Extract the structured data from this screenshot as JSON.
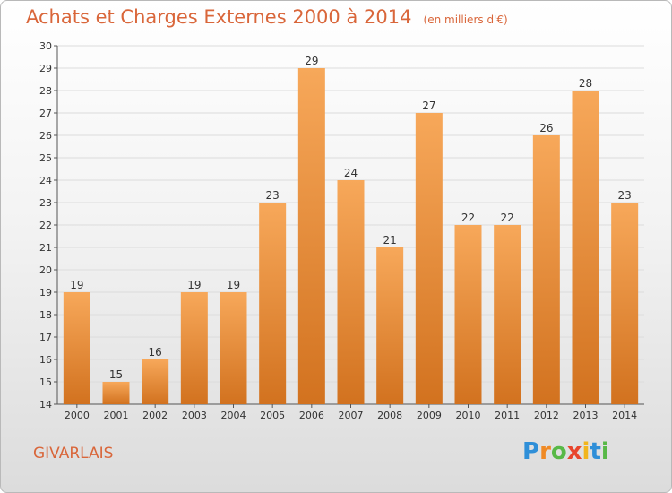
{
  "header": {
    "title": "Achats et Charges Externes 2000 à 2014",
    "unit": "(en milliers d'€)"
  },
  "footer": {
    "commune": "GIVARLAIS",
    "logo": [
      "P",
      "r",
      "o",
      "x",
      "i",
      "t",
      "i"
    ],
    "logo_colors": [
      "#2f8fd8",
      "#f08a24",
      "#58b947",
      "#e8452c",
      "#f2b51c",
      "#2f8fd8",
      "#58b947"
    ]
  },
  "colors": {
    "bar_top": "#f7a85a",
    "bar_bottom": "#d2721f",
    "title": "#d9663a",
    "grid": "#dcdcdc"
  },
  "chart_data": {
    "type": "bar",
    "title": "Achats et Charges Externes 2000 à 2014",
    "subtitle": "(en milliers d'€)",
    "categories": [
      "2000",
      "2001",
      "2002",
      "2003",
      "2004",
      "2005",
      "2006",
      "2007",
      "2008",
      "2009",
      "2010",
      "2011",
      "2012",
      "2013",
      "2014"
    ],
    "values": [
      19,
      15,
      16,
      19,
      19,
      23,
      29,
      24,
      21,
      27,
      22,
      22,
      26,
      28,
      23
    ],
    "ylim": [
      14,
      30
    ],
    "yticks": [
      "14",
      "15",
      "16",
      "17",
      "18",
      "19",
      "20",
      "21",
      "22",
      "23",
      "24",
      "25",
      "26",
      "27",
      "28",
      "29",
      "30"
    ],
    "grid": true,
    "legend": "none"
  }
}
